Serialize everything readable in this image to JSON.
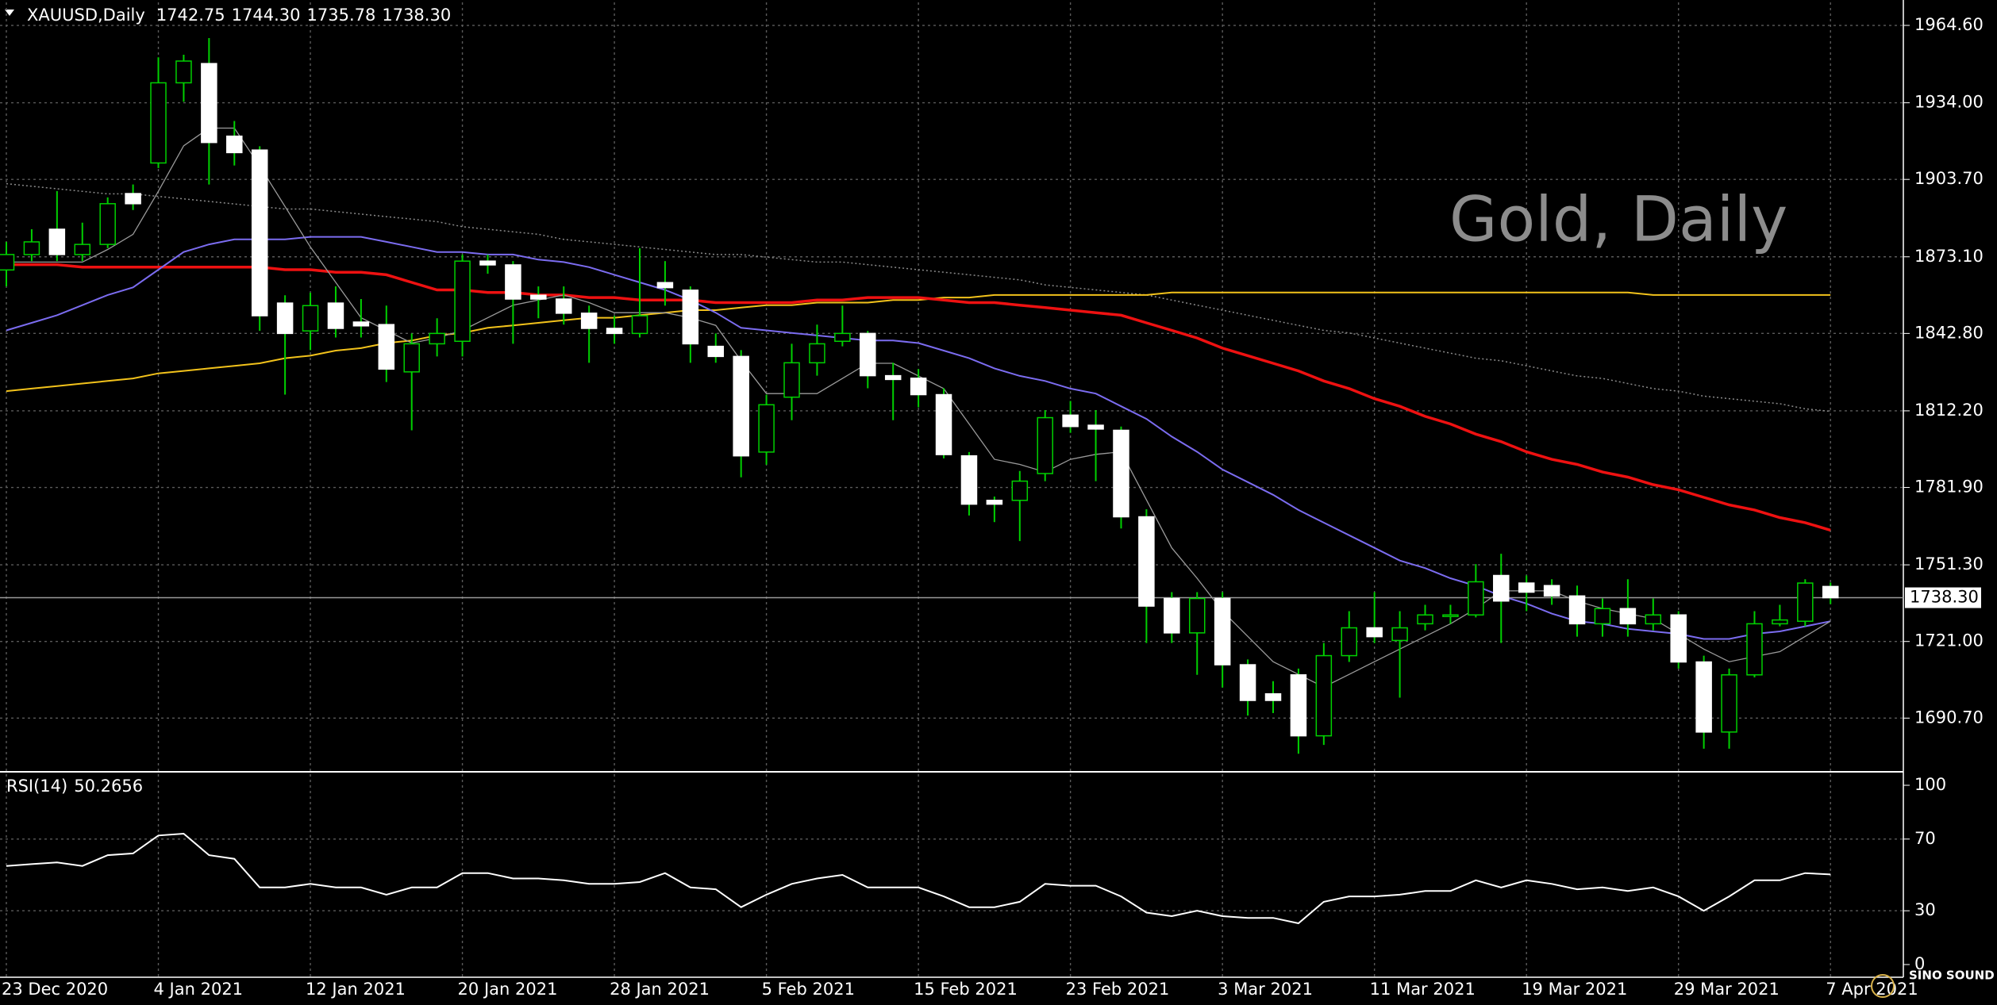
{
  "chart_data": [
    {
      "type": "candlestick",
      "title": "XAUUSD,Daily",
      "header_values": [
        "1742.75",
        "1744.30",
        "1735.78",
        "1738.30"
      ],
      "watermark": "Gold, Daily",
      "logo": "SINO SOUND",
      "categories": [
        "23 Dec 2020",
        null,
        null,
        null,
        null,
        null,
        "4 Jan 2021",
        null,
        null,
        null,
        null,
        null,
        "12 Jan 2021",
        null,
        null,
        null,
        null,
        null,
        "20 Jan 2021",
        null,
        null,
        null,
        null,
        null,
        "28 Jan 2021",
        null,
        null,
        null,
        null,
        null,
        "5 Feb 2021",
        null,
        null,
        null,
        null,
        null,
        "15 Feb 2021",
        null,
        null,
        null,
        null,
        null,
        "23 Feb 2021",
        null,
        null,
        null,
        null,
        null,
        "3 Mar 2021",
        null,
        null,
        null,
        null,
        null,
        "11 Mar 2021",
        null,
        null,
        null,
        null,
        null,
        "19 Mar 2021",
        null,
        null,
        null,
        null,
        null,
        "29 Mar 2021",
        null,
        null,
        null,
        null,
        null,
        "7 Apr 2021"
      ],
      "open": [
        1867.9,
        1874.0,
        1884.0,
        1874.0,
        1878.0,
        1898.1,
        1910.2,
        1941.9,
        1949.5,
        1920.8,
        1915.3,
        1854.8,
        1843.8,
        1854.8,
        1847.3,
        1846.3,
        1827.6,
        1838.7,
        1839.7,
        1871.4,
        1869.9,
        1857.9,
        1856.4,
        1850.8,
        1844.8,
        1842.8,
        1862.9,
        1859.9,
        1837.7,
        1833.7,
        1795.9,
        1817.6,
        1831.2,
        1839.7,
        1842.8,
        1826.1,
        1825.1,
        1818.6,
        1794.4,
        1776.8,
        1776.8,
        1787.4,
        1810.5,
        1806.5,
        1804.5,
        1770.3,
        1738.0,
        1724.4,
        1738.0,
        1711.8,
        1700.3,
        1707.8,
        1683.7,
        1715.4,
        1726.4,
        1721.4,
        1728.0,
        1731.0,
        1731.5,
        1747.1,
        1744.1,
        1743.1,
        1739.0,
        1728.0,
        1734.0,
        1728.0,
        1731.5,
        1712.9,
        1685.2,
        1707.8,
        1728.0,
        1729.0,
        1742.75
      ],
      "high": [
        1879.0,
        1884.0,
        1899.1,
        1886.6,
        1896.6,
        1901.7,
        1952.0,
        1953.0,
        1959.6,
        1926.8,
        1916.8,
        1857.9,
        1858.9,
        1861.4,
        1856.4,
        1853.8,
        1842.8,
        1848.8,
        1874.0,
        1874.0,
        1871.4,
        1861.4,
        1861.4,
        1853.8,
        1849.8,
        1876.5,
        1871.4,
        1861.4,
        1842.8,
        1836.2,
        1818.6,
        1838.7,
        1846.3,
        1853.8,
        1843.8,
        1831.2,
        1828.7,
        1821.1,
        1795.9,
        1778.3,
        1788.4,
        1812.5,
        1816.1,
        1812.5,
        1806.0,
        1773.3,
        1740.5,
        1740.5,
        1740.5,
        1713.9,
        1705.3,
        1710.3,
        1720.4,
        1733.0,
        1740.5,
        1733.0,
        1735.5,
        1735.5,
        1751.6,
        1755.7,
        1747.1,
        1745.6,
        1743.1,
        1738.0,
        1745.6,
        1738.0,
        1733.0,
        1715.4,
        1710.3,
        1733.0,
        1735.5,
        1745.6,
        1744.3
      ],
      "low": [
        1861.4,
        1871.4,
        1871.4,
        1871.4,
        1876.5,
        1891.6,
        1908.2,
        1934.4,
        1901.7,
        1909.2,
        1843.8,
        1818.6,
        1836.2,
        1841.2,
        1841.2,
        1823.6,
        1804.5,
        1833.7,
        1833.7,
        1866.4,
        1838.7,
        1848.8,
        1846.3,
        1831.2,
        1838.7,
        1841.2,
        1853.8,
        1831.2,
        1831.2,
        1785.9,
        1790.9,
        1808.5,
        1826.1,
        1837.7,
        1821.1,
        1808.5,
        1813.6,
        1793.4,
        1770.8,
        1768.2,
        1760.7,
        1784.4,
        1803.5,
        1784.4,
        1765.7,
        1720.4,
        1720.4,
        1707.8,
        1702.8,
        1691.7,
        1692.7,
        1676.6,
        1680.1,
        1712.9,
        1720.4,
        1698.8,
        1725.4,
        1728.0,
        1730.5,
        1720.4,
        1733.0,
        1735.5,
        1722.9,
        1722.9,
        1722.9,
        1725.4,
        1710.3,
        1678.6,
        1678.6,
        1706.8,
        1727.0,
        1727.0,
        1735.78
      ],
      "close": [
        1874.0,
        1879.0,
        1874.0,
        1878.0,
        1894.1,
        1894.1,
        1941.9,
        1950.5,
        1918.3,
        1914.3,
        1849.8,
        1842.8,
        1853.8,
        1844.8,
        1845.8,
        1828.7,
        1838.7,
        1842.8,
        1871.4,
        1869.9,
        1856.4,
        1856.4,
        1850.8,
        1844.8,
        1842.8,
        1849.8,
        1860.9,
        1838.7,
        1833.7,
        1794.4,
        1814.6,
        1831.2,
        1838.7,
        1842.8,
        1826.1,
        1824.6,
        1818.6,
        1794.9,
        1775.3,
        1775.3,
        1784.4,
        1809.5,
        1806.0,
        1805.0,
        1770.3,
        1735.0,
        1724.4,
        1738.0,
        1711.8,
        1697.7,
        1697.7,
        1683.7,
        1715.4,
        1726.4,
        1722.9,
        1726.4,
        1731.5,
        1731.5,
        1744.6,
        1737.0,
        1740.5,
        1739.0,
        1728.0,
        1734.0,
        1728.0,
        1731.5,
        1712.9,
        1685.2,
        1707.8,
        1728.0,
        1729.5,
        1744.1,
        1738.3
      ],
      "up_color": "#000000",
      "down_color": "#ffffff",
      "wick_color": "#00d000",
      "series": [
        {
          "color": "#8a8a8a",
          "style": "dotted",
          "values": [
            1902,
            1901,
            1900,
            1899,
            1898,
            1898,
            1897,
            1896,
            1895,
            1894,
            1893,
            1892,
            1892,
            1891,
            1890,
            1889,
            1888,
            1887,
            1885,
            1884,
            1883,
            1882,
            1880,
            1879,
            1878,
            1877,
            1876,
            1875,
            1874,
            1874,
            1873,
            1872,
            1871,
            1871,
            1870,
            1869,
            1868,
            1867,
            1866,
            1865,
            1864,
            1862,
            1861,
            1860,
            1859,
            1858,
            1856,
            1854,
            1852,
            1850,
            1848,
            1846,
            1844,
            1843,
            1841,
            1839,
            1837,
            1835,
            1833,
            1832,
            1830,
            1828,
            1826,
            1825,
            1823,
            1821,
            1820,
            1818,
            1817,
            1816,
            1815,
            1813,
            1812
          ]
        },
        {
          "color": "#f2c21b",
          "style": "solid",
          "values": [
            1820,
            1821,
            1822,
            1823,
            1824,
            1825,
            1827,
            1828,
            1829,
            1830,
            1831,
            1833,
            1834,
            1836,
            1837,
            1839,
            1840,
            1842,
            1843,
            1845,
            1846,
            1847,
            1848,
            1849,
            1849,
            1850,
            1851,
            1852,
            1852,
            1853,
            1854,
            1854,
            1855,
            1855,
            1855,
            1856,
            1856,
            1857,
            1857,
            1858,
            1858,
            1858,
            1858,
            1858,
            1858,
            1858,
            1859,
            1859,
            1859,
            1859,
            1859,
            1859,
            1859,
            1859,
            1859,
            1859,
            1859,
            1859,
            1859,
            1859,
            1859,
            1859,
            1859,
            1859,
            1859,
            1858,
            1858,
            1858,
            1858,
            1858,
            1858,
            1858,
            1858
          ]
        },
        {
          "color": "#ee1111",
          "style": "thick",
          "values": [
            1870,
            1870,
            1870,
            1869,
            1869,
            1869,
            1869,
            1869,
            1869,
            1869,
            1869,
            1868,
            1868,
            1867,
            1867,
            1866,
            1863,
            1860,
            1860,
            1859,
            1859,
            1858,
            1858,
            1857,
            1857,
            1856,
            1856,
            1856,
            1855,
            1855,
            1855,
            1855,
            1856,
            1856,
            1857,
            1857,
            1857,
            1856,
            1855,
            1855,
            1854,
            1853,
            1852,
            1851,
            1850,
            1847,
            1844,
            1841,
            1837,
            1834,
            1831,
            1828,
            1824,
            1821,
            1817,
            1814,
            1810,
            1807,
            1803,
            1800,
            1796,
            1793,
            1791,
            1788,
            1786,
            1783,
            1781,
            1778,
            1775,
            1773,
            1770,
            1768,
            1765
          ]
        },
        {
          "color": "#7b6cf0",
          "style": "solid",
          "values": [
            1844,
            1847,
            1850,
            1854,
            1858,
            1861,
            1868,
            1875,
            1878,
            1880,
            1880,
            1880,
            1881,
            1881,
            1881,
            1879,
            1877,
            1875,
            1875,
            1874,
            1874,
            1872,
            1871,
            1869,
            1866,
            1863,
            1860,
            1856,
            1851,
            1845,
            1844,
            1843,
            1842,
            1841,
            1840,
            1840,
            1839,
            1836,
            1833,
            1829,
            1826,
            1824,
            1821,
            1819,
            1814,
            1809,
            1802,
            1796,
            1789,
            1784,
            1779,
            1773,
            1768,
            1763,
            1758,
            1753,
            1750,
            1746,
            1743,
            1739,
            1736,
            1732,
            1729,
            1728,
            1726,
            1725,
            1724,
            1722,
            1722,
            1724,
            1725,
            1727,
            1729
          ]
        },
        {
          "color": "#9a9a9a",
          "style": "thin",
          "values": [
            1871,
            1871,
            1871,
            1871,
            1876,
            1882,
            1899,
            1917,
            1924,
            1924,
            1909,
            1893,
            1877,
            1863,
            1849,
            1844,
            1839,
            1841,
            1844,
            1849,
            1854,
            1856,
            1858,
            1855,
            1851,
            1851,
            1851,
            1849,
            1846,
            1832,
            1819,
            1819,
            1819,
            1825,
            1831,
            1831,
            1826,
            1821,
            1807,
            1793,
            1791,
            1788,
            1793,
            1795,
            1796,
            1777,
            1758,
            1746,
            1733,
            1723,
            1713,
            1708,
            1703,
            1708,
            1713,
            1718,
            1723,
            1728,
            1734,
            1741,
            1741,
            1741,
            1737,
            1734,
            1732,
            1730,
            1724,
            1718,
            1713,
            1715,
            1717,
            1723,
            1729
          ]
        }
      ],
      "ylim": [
        1670.1,
        1973.7
      ],
      "yticks": [
        {
          "value": 1964.6,
          "label": "1964.60"
        },
        {
          "value": 1934,
          "label": "1934.00"
        },
        {
          "value": 1903.7,
          "label": "1903.70"
        },
        {
          "value": 1873.1,
          "label": "1873.10"
        },
        {
          "value": 1842.8,
          "label": "1842.80"
        },
        {
          "value": 1812.2,
          "label": "1812.20"
        },
        {
          "value": 1781.9,
          "label": "1781.90"
        },
        {
          "value": 1751.3,
          "label": "1751.30"
        },
        {
          "value": 1721,
          "label": "1721.00"
        },
        {
          "value": 1690.7,
          "label": "1690.70"
        }
      ],
      "price_line": {
        "value": 1738.3,
        "label": "1738.30"
      },
      "grid": true
    },
    {
      "type": "line",
      "title": "RSI(14)",
      "color": "#ffffff",
      "values": [
        55,
        56,
        57,
        55,
        61,
        62,
        72,
        73,
        61,
        59,
        43,
        43,
        45,
        43,
        43,
        39,
        43,
        43,
        51,
        51,
        48,
        48,
        47,
        45,
        45,
        46,
        51,
        43,
        42,
        32,
        39,
        45,
        48,
        50,
        43,
        43,
        43,
        38,
        32,
        32,
        35,
        45,
        44,
        44,
        38,
        29,
        27,
        30,
        27,
        26,
        26,
        23,
        35,
        38,
        38,
        39,
        41,
        41,
        47,
        43,
        47,
        45,
        42,
        43,
        41,
        43,
        38,
        30,
        38,
        47,
        47,
        51,
        50.2656
      ],
      "ylim": [
        0,
        100
      ],
      "yticks": [
        100,
        70,
        30,
        0
      ],
      "grid": true
    }
  ]
}
